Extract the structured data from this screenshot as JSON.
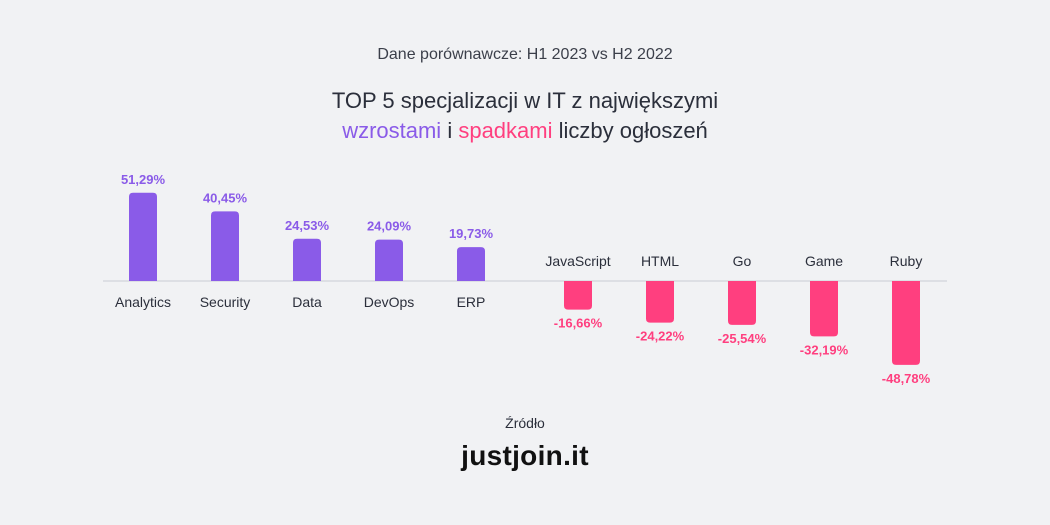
{
  "header": {
    "subtitle": "Dane porównawcze: H1 2023 vs H2 2022",
    "title_line1": "TOP 5 specjalizacji w IT z największymi",
    "title_rise_word": "wzrostami",
    "title_connector": " i ",
    "title_fall_word": "spadkami",
    "title_tail": " liczby ogłoszeń"
  },
  "footer": {
    "source_label": "Źródło",
    "logo_text": "justjoin.it"
  },
  "colors": {
    "rise": "#8a5be8",
    "fall": "#ff3f7f",
    "axis": "#c9ccd3",
    "text": "#2b2f3b"
  },
  "chart_data": {
    "type": "bar",
    "categories": [
      "Analytics",
      "Security",
      "Data",
      "DevOps",
      "ERP",
      "JavaScript",
      "HTML",
      "Go",
      "Game",
      "Ruby"
    ],
    "values": [
      51.29,
      40.45,
      24.53,
      24.09,
      19.73,
      -16.66,
      -24.22,
      -25.54,
      -32.19,
      -48.78
    ],
    "value_labels": [
      "51,29%",
      "40,45%",
      "24,53%",
      "24,09%",
      "19,73%",
      "-16,66%",
      "-24,22%",
      "-25,54%",
      "-32,19%",
      "-48,78%"
    ],
    "ylim": [
      -50,
      55
    ],
    "grid": false,
    "legend": "none"
  }
}
